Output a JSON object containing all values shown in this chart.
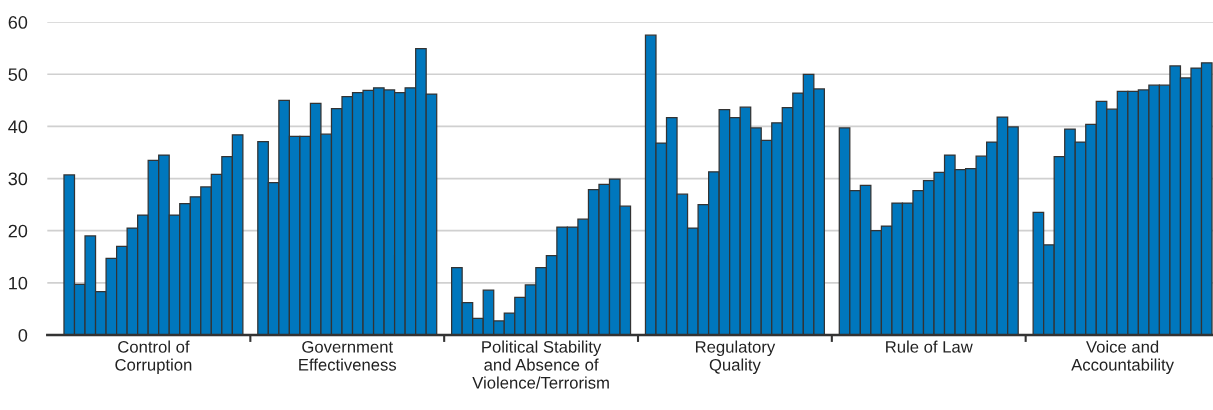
{
  "chart_data": {
    "type": "bar",
    "categories": [
      "Control of\nCorruption",
      "Government\nEffectiveness",
      "Political Stability\nand Absence of\nViolence/Terrorism",
      "Regulatory\nQuality",
      "Rule of Law",
      "Voice and\nAccountability"
    ],
    "series": [
      {
        "color": "#0077bd",
        "values": [
          30.7,
          37.1,
          12.9,
          57.5,
          39.7,
          23.5
        ]
      },
      {
        "color": "#0077bd",
        "values": [
          9.7,
          29.2,
          6.2,
          36.8,
          27.7,
          17.3
        ]
      },
      {
        "color": "#0077bd",
        "values": [
          19.0,
          45.0,
          3.2,
          41.7,
          28.7,
          34.2
        ]
      },
      {
        "color": "#0077bd",
        "values": [
          8.3,
          38.1,
          8.6,
          27.0,
          20.0,
          39.5
        ]
      },
      {
        "color": "#0077bd",
        "values": [
          14.7,
          38.1,
          2.7,
          20.5,
          20.9,
          37.0
        ]
      },
      {
        "color": "#0077bd",
        "values": [
          17.0,
          44.4,
          4.2,
          25.0,
          25.3,
          40.4
        ]
      },
      {
        "color": "#0077bd",
        "values": [
          20.5,
          38.5,
          7.2,
          31.3,
          25.3,
          44.8
        ]
      },
      {
        "color": "#0077bd",
        "values": [
          23.0,
          43.4,
          9.6,
          43.2,
          27.7,
          43.3
        ]
      },
      {
        "color": "#0077bd",
        "values": [
          33.5,
          45.7,
          12.9,
          41.7,
          29.6,
          46.7
        ]
      },
      {
        "color": "#0077bd",
        "values": [
          34.5,
          46.5,
          15.2,
          43.7,
          31.2,
          46.7
        ]
      },
      {
        "color": "#0077bd",
        "values": [
          23.0,
          46.9,
          20.7,
          39.7,
          34.5,
          47.0
        ]
      },
      {
        "color": "#0077bd",
        "values": [
          25.2,
          47.4,
          20.7,
          37.3,
          31.7,
          47.9
        ]
      },
      {
        "color": "#0077bd",
        "values": [
          26.5,
          47.0,
          22.2,
          40.7,
          31.9,
          47.9
        ]
      },
      {
        "color": "#0077bd",
        "values": [
          28.4,
          46.5,
          27.9,
          43.6,
          34.3,
          51.6
        ]
      },
      {
        "color": "#0077bd",
        "values": [
          30.8,
          47.4,
          28.9,
          46.4,
          37.0,
          49.3
        ]
      },
      {
        "color": "#0077bd",
        "values": [
          34.2,
          54.9,
          29.9,
          50.0,
          41.8,
          51.2
        ]
      },
      {
        "color": "#0077bd",
        "values": [
          38.4,
          46.2,
          24.7,
          47.2,
          39.9,
          52.2
        ]
      }
    ],
    "ylim": [
      0,
      60
    ],
    "yticks": [
      0,
      10,
      20,
      30,
      40,
      50,
      60
    ],
    "grid": "y"
  }
}
